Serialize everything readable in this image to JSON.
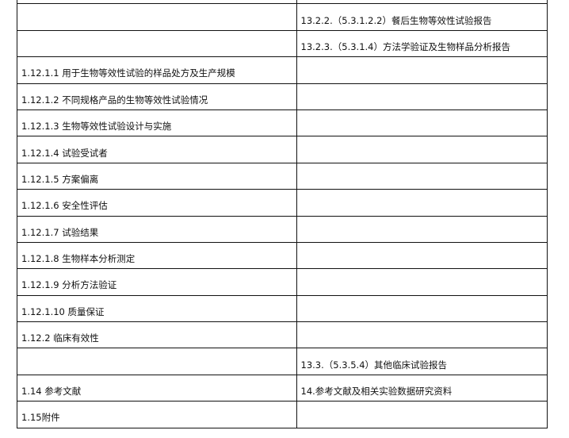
{
  "rows": [
    {
      "left": "",
      "right": ""
    },
    {
      "left": "",
      "right": "13.2.2.（5.3.1.2.2）餐后生物等效性试验报告"
    },
    {
      "left": "",
      "right": "13.2.3.（5.3.1.4）方法学验证及生物样品分析报告"
    },
    {
      "left": "1.12.1.1 用于生物等效性试验的样品处方及生产规模",
      "right": ""
    },
    {
      "left": "1.12.1.2 不同规格产品的生物等效性试验情况",
      "right": ""
    },
    {
      "left": "1.12.1.3 生物等效性试验设计与实施",
      "right": ""
    },
    {
      "left": "1.12.1.4 试验受试者",
      "right": ""
    },
    {
      "left": "1.12.1.5 方案偏离",
      "right": ""
    },
    {
      "left": "1.12.1.6 安全性评估",
      "right": ""
    },
    {
      "left": "1.12.1.7 试验结果",
      "right": ""
    },
    {
      "left": "1.12.1.8 生物样本分析测定",
      "right": ""
    },
    {
      "left": "1.12.1.9 分析方法验证",
      "right": ""
    },
    {
      "left": "1.12.1.10 质量保证",
      "right": ""
    },
    {
      "left": "1.12.2 临床有效性",
      "right": ""
    },
    {
      "left": "",
      "right": "13.3.（5.3.5.4）其他临床试验报告"
    },
    {
      "left": "1.14 参考文献",
      "right": "14.参考文献及相关实验数据研究资料"
    },
    {
      "left": "1.15附件",
      "right": ""
    }
  ]
}
